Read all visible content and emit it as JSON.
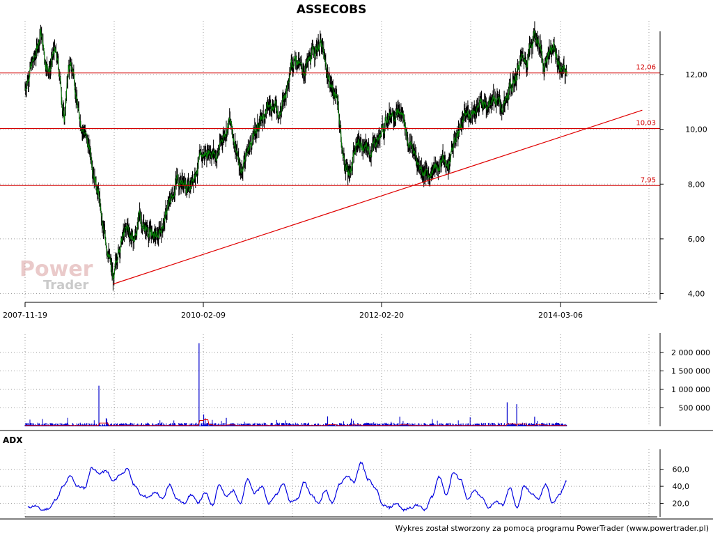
{
  "colors": {
    "candle": "#000000",
    "close_line": "#008000",
    "level": "#d40000",
    "trendline": "#e00000",
    "volume": "#0000cc",
    "volume_avg": "#e00000",
    "adx": "#0000e0",
    "grid": "#9a9a9a"
  },
  "watermark": {
    "line1": "Power",
    "line2": "Trader"
  },
  "footer": "Wykres został stworzony za pomocą programu PowerTrader (www.powertrader.pl)",
  "chart_data": [
    {
      "type": "line",
      "title": "ASSECOBS",
      "date_range": [
        "2007-11-19",
        "2014-04-02"
      ],
      "x_ticks": [
        "2007-11-19",
        "2010-02-09",
        "2012-02-20",
        "2014-03-06"
      ],
      "y_ticks": [
        "4,00",
        "6,00",
        "8,00",
        "10,00",
        "12,00"
      ],
      "ylim": [
        3.7,
        13.4
      ],
      "grid": true,
      "levels": [
        {
          "label": "12,06",
          "value": 12.06
        },
        {
          "label": "10,03",
          "value": 10.03
        },
        {
          "label": "7,95",
          "value": 7.95
        }
      ],
      "trendline": {
        "from": [
          "2008-12-01",
          4.35
        ],
        "to": [
          "2015-02-20",
          10.7
        ]
      },
      "series": [
        {
          "points": [
            [
              "2007-11-19",
              11.5
            ],
            [
              "2007-12-10",
              12.2
            ],
            [
              "2008-01-01",
              12.6
            ],
            [
              "2008-01-25",
              13.6
            ],
            [
              "2008-02-15",
              12.5
            ],
            [
              "2008-03-05",
              12.2
            ],
            [
              "2008-03-25",
              12.9
            ],
            [
              "2008-04-15",
              12.1
            ],
            [
              "2008-05-05",
              10.3
            ],
            [
              "2008-05-25",
              12.3
            ],
            [
              "2008-06-15",
              12.1
            ],
            [
              "2008-07-05",
              10.6
            ],
            [
              "2008-08-01",
              9.9
            ],
            [
              "2008-09-01",
              8.9
            ],
            [
              "2008-10-01",
              7.6
            ],
            [
              "2008-10-20",
              6.2
            ],
            [
              "2008-11-10",
              5.6
            ],
            [
              "2008-11-25",
              4.8
            ],
            [
              "2008-12-05",
              4.4
            ],
            [
              "2008-12-20",
              5.5
            ],
            [
              "2009-01-10",
              6.0
            ],
            [
              "2009-02-01",
              6.4
            ],
            [
              "2009-03-01",
              5.9
            ],
            [
              "2009-03-25",
              6.8
            ],
            [
              "2009-04-20",
              6.4
            ],
            [
              "2009-05-15",
              6.2
            ],
            [
              "2009-06-10",
              6.0
            ],
            [
              "2009-07-05",
              6.6
            ],
            [
              "2009-08-01",
              7.3
            ],
            [
              "2009-09-01",
              8.2
            ],
            [
              "2009-09-25",
              8.1
            ],
            [
              "2009-10-20",
              7.8
            ],
            [
              "2009-11-20",
              8.5
            ],
            [
              "2009-12-20",
              9.0
            ],
            [
              "2010-01-20",
              9.3
            ],
            [
              "2010-02-20",
              9.0
            ],
            [
              "2010-03-20",
              9.8
            ],
            [
              "2010-04-15",
              10.3
            ],
            [
              "2010-05-10",
              9.5
            ],
            [
              "2010-06-01",
              8.4
            ],
            [
              "2010-06-20",
              9.0
            ],
            [
              "2010-07-20",
              9.6
            ],
            [
              "2010-08-20",
              10.2
            ],
            [
              "2010-09-20",
              10.7
            ],
            [
              "2010-10-20",
              11.0
            ],
            [
              "2010-11-20",
              10.6
            ],
            [
              "2010-12-15",
              11.4
            ],
            [
              "2011-01-05",
              12.6
            ],
            [
              "2011-01-25",
              12.6
            ],
            [
              "2011-02-20",
              12.1
            ],
            [
              "2011-03-20",
              12.4
            ],
            [
              "2011-04-15",
              12.9
            ],
            [
              "2011-05-10",
              13.2
            ],
            [
              "2011-05-25",
              12.6
            ],
            [
              "2011-06-10",
              12.0
            ],
            [
              "2011-07-01",
              11.5
            ],
            [
              "2011-07-25",
              11.0
            ],
            [
              "2011-08-15",
              9.0
            ],
            [
              "2011-09-05",
              8.4
            ],
            [
              "2011-09-25",
              8.8
            ],
            [
              "2011-10-20",
              9.6
            ],
            [
              "2011-11-15",
              9.3
            ],
            [
              "2011-12-10",
              9.2
            ],
            [
              "2012-01-05",
              9.6
            ],
            [
              "2012-01-25",
              9.8
            ],
            [
              "2012-02-20",
              10.4
            ],
            [
              "2012-03-15",
              10.7
            ],
            [
              "2012-04-10",
              10.6
            ],
            [
              "2012-05-01",
              10.5
            ],
            [
              "2012-05-20",
              9.6
            ],
            [
              "2012-06-10",
              9.3
            ],
            [
              "2012-07-01",
              8.8
            ],
            [
              "2012-07-25",
              8.5
            ],
            [
              "2012-08-15",
              8.3
            ],
            [
              "2012-09-05",
              8.6
            ],
            [
              "2012-09-25",
              8.5
            ],
            [
              "2012-10-15",
              9.0
            ],
            [
              "2012-11-05",
              8.6
            ],
            [
              "2012-11-25",
              9.2
            ],
            [
              "2012-12-15",
              9.8
            ],
            [
              "2013-01-10",
              10.3
            ],
            [
              "2013-02-05",
              10.6
            ],
            [
              "2013-03-05",
              10.8
            ],
            [
              "2013-04-01",
              10.9
            ],
            [
              "2013-04-25",
              11.0
            ],
            [
              "2013-05-20",
              11.3
            ],
            [
              "2013-06-15",
              10.9
            ],
            [
              "2013-07-10",
              10.8
            ],
            [
              "2013-08-05",
              11.5
            ],
            [
              "2013-08-30",
              12.0
            ],
            [
              "2013-09-20",
              12.6
            ],
            [
              "2013-10-10",
              12.5
            ],
            [
              "2013-11-01",
              13.2
            ],
            [
              "2013-11-15",
              13.5
            ],
            [
              "2013-12-05",
              13.1
            ],
            [
              "2013-12-25",
              12.3
            ],
            [
              "2014-01-15",
              12.9
            ],
            [
              "2014-02-05",
              13.0
            ],
            [
              "2014-02-25",
              12.4
            ],
            [
              "2014-03-15",
              12.1
            ],
            [
              "2014-04-02",
              11.95
            ]
          ]
        }
      ]
    },
    {
      "type": "bar",
      "y_ticks": [
        "500 000",
        "1 000 000",
        "1 500 000",
        "2 000 000"
      ],
      "ylim": [
        0,
        2300000
      ],
      "grid": true,
      "spikes": [
        {
          "date": "2008-10-01",
          "value": 1100000
        },
        {
          "date": "2009-12-05",
          "value": 2250000
        },
        {
          "date": "2009-12-25",
          "value": 320000
        },
        {
          "date": "2010-04-01",
          "value": 230000
        },
        {
          "date": "2011-06-10",
          "value": 270000
        },
        {
          "date": "2011-09-20",
          "value": 210000
        },
        {
          "date": "2012-04-15",
          "value": 260000
        },
        {
          "date": "2013-07-20",
          "value": 650000
        },
        {
          "date": "2013-08-30",
          "value": 600000
        },
        {
          "date": "2013-11-15",
          "value": 260000
        }
      ],
      "baseline_volume": 70000
    },
    {
      "type": "line",
      "title": "ADX",
      "y_ticks": [
        "20,0",
        "40,0",
        "60,0"
      ],
      "ylim": [
        5,
        75
      ],
      "grid": true,
      "series": [
        {
          "points": [
            [
              "2007-12-01",
              15
            ],
            [
              "2008-01-01",
              17
            ],
            [
              "2008-02-01",
              12
            ],
            [
              "2008-03-01",
              14
            ],
            [
              "2008-04-01",
              25
            ],
            [
              "2008-05-01",
              40
            ],
            [
              "2008-06-01",
              52
            ],
            [
              "2008-07-01",
              40
            ],
            [
              "2008-08-01",
              38
            ],
            [
              "2008-09-01",
              62
            ],
            [
              "2008-10-01",
              55
            ],
            [
              "2008-11-01",
              58
            ],
            [
              "2008-12-01",
              46
            ],
            [
              "2009-01-01",
              54
            ],
            [
              "2009-02-01",
              60
            ],
            [
              "2009-03-01",
              42
            ],
            [
              "2009-04-01",
              30
            ],
            [
              "2009-05-01",
              27
            ],
            [
              "2009-06-01",
              33
            ],
            [
              "2009-07-01",
              25
            ],
            [
              "2009-08-01",
              42
            ],
            [
              "2009-09-01",
              25
            ],
            [
              "2009-10-01",
              20
            ],
            [
              "2009-11-01",
              30
            ],
            [
              "2009-12-01",
              21
            ],
            [
              "2010-01-01",
              32
            ],
            [
              "2010-02-01",
              18
            ],
            [
              "2010-03-01",
              42
            ],
            [
              "2010-04-01",
              28
            ],
            [
              "2010-05-01",
              35
            ],
            [
              "2010-06-01",
              20
            ],
            [
              "2010-07-01",
              48
            ],
            [
              "2010-08-01",
              32
            ],
            [
              "2010-09-01",
              40
            ],
            [
              "2010-10-01",
              20
            ],
            [
              "2010-11-01",
              30
            ],
            [
              "2010-12-01",
              44
            ],
            [
              "2011-01-01",
              22
            ],
            [
              "2011-02-01",
              25
            ],
            [
              "2011-03-01",
              45
            ],
            [
              "2011-04-01",
              30
            ],
            [
              "2011-05-01",
              20
            ],
            [
              "2011-06-01",
              35
            ],
            [
              "2011-07-01",
              20
            ],
            [
              "2011-08-01",
              43
            ],
            [
              "2011-09-01",
              52
            ],
            [
              "2011-10-01",
              45
            ],
            [
              "2011-11-01",
              68
            ],
            [
              "2011-12-01",
              48
            ],
            [
              "2012-01-01",
              38
            ],
            [
              "2012-02-01",
              18
            ],
            [
              "2012-03-01",
              15
            ],
            [
              "2012-04-01",
              20
            ],
            [
              "2012-05-01",
              12
            ],
            [
              "2012-06-01",
              15
            ],
            [
              "2012-07-01",
              18
            ],
            [
              "2012-08-01",
              12
            ],
            [
              "2012-09-01",
              28
            ],
            [
              "2012-10-01",
              52
            ],
            [
              "2012-11-01",
              30
            ],
            [
              "2012-12-01",
              56
            ],
            [
              "2013-01-01",
              48
            ],
            [
              "2013-02-01",
              24
            ],
            [
              "2013-03-01",
              35
            ],
            [
              "2013-04-01",
              27
            ],
            [
              "2013-05-01",
              15
            ],
            [
              "2013-06-01",
              22
            ],
            [
              "2013-07-01",
              18
            ],
            [
              "2013-08-01",
              38
            ],
            [
              "2013-09-01",
              15
            ],
            [
              "2013-10-01",
              40
            ],
            [
              "2013-11-01",
              32
            ],
            [
              "2013-12-01",
              25
            ],
            [
              "2014-01-01",
              42
            ],
            [
              "2014-02-01",
              20
            ],
            [
              "2014-03-01",
              30
            ],
            [
              "2014-04-02",
              46
            ]
          ]
        }
      ]
    }
  ]
}
